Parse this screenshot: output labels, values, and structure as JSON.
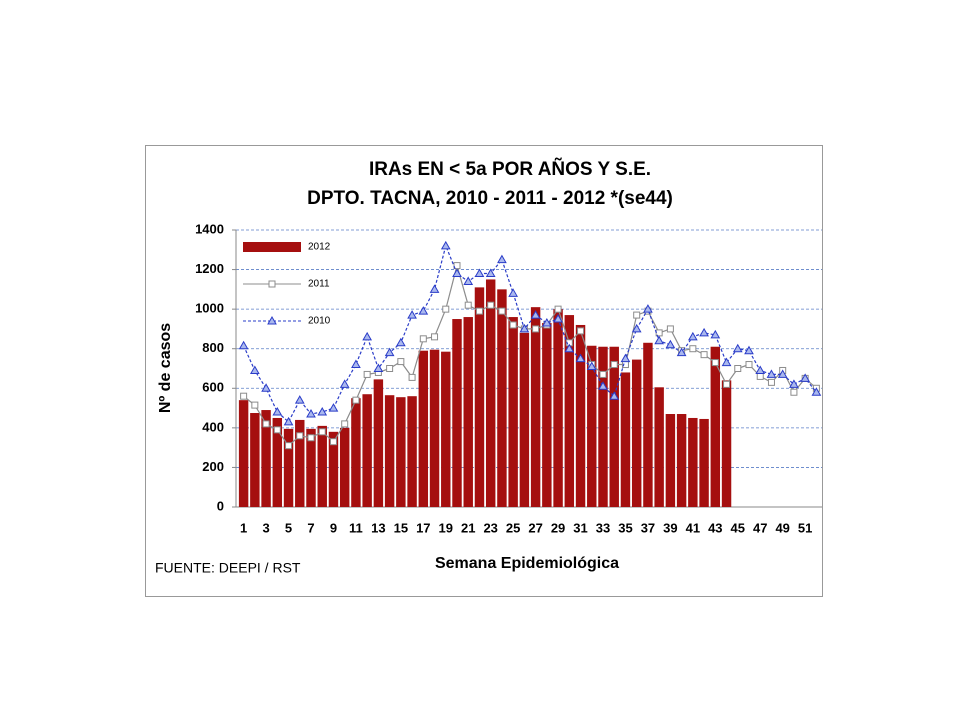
{
  "chart_data": {
    "type": "bar-line",
    "title": "IRAs  EN < 5a POR AÑOS Y S.E.",
    "subtitle": "DPTO. TACNA, 2010 - 2011 -  2012 *(se44)",
    "y_label": "Nº de casos",
    "x_label": "Semana Epidemiológica",
    "source": "FUENTE: DEEPI / RST",
    "categories": [
      "1",
      null,
      "3",
      null,
      "5",
      null,
      "7",
      null,
      "9",
      null,
      "11",
      null,
      "13",
      null,
      "15",
      null,
      "17",
      null,
      "19",
      null,
      "21",
      null,
      "23",
      null,
      "25",
      null,
      "27",
      null,
      "29",
      null,
      "31",
      null,
      "33",
      null,
      "35",
      null,
      "37",
      null,
      "39",
      null,
      "41",
      null,
      "43",
      null,
      "45",
      null,
      "47",
      null,
      "49",
      null,
      "51",
      null
    ],
    "ylim": [
      0,
      1400
    ],
    "yticks": [
      0,
      200,
      400,
      600,
      800,
      1000,
      1200,
      1400
    ],
    "grid": true,
    "legend": "upper left",
    "series": [
      {
        "name": "2012",
        "kind": "bar",
        "color": "#a50f0f",
        "values": [
          540,
          475,
          490,
          450,
          395,
          440,
          395,
          410,
          380,
          400,
          550,
          570,
          645,
          565,
          555,
          560,
          790,
          795,
          785,
          950,
          960,
          1110,
          1150,
          1100,
          960,
          880,
          1010,
          930,
          1000,
          970,
          920,
          815,
          810,
          810,
          680,
          745,
          830,
          605,
          470,
          470,
          450,
          445,
          810,
          640,
          null,
          null,
          null,
          null,
          null,
          null,
          null,
          null
        ]
      },
      {
        "name": "2011",
        "kind": "line",
        "color": "#8c8c8c",
        "marker": "square",
        "values": [
          560,
          515,
          420,
          390,
          310,
          360,
          350,
          380,
          330,
          420,
          540,
          670,
          680,
          700,
          735,
          655,
          850,
          860,
          1000,
          1220,
          1020,
          990,
          1020,
          990,
          920,
          900,
          900,
          920,
          1000,
          830,
          890,
          720,
          670,
          720,
          720,
          970,
          990,
          880,
          900,
          790,
          800,
          770,
          730,
          620,
          700,
          720,
          660,
          630,
          690,
          580,
          650,
          600
        ]
      },
      {
        "name": "2010",
        "kind": "line",
        "color": "#2a3cc8",
        "marker": "triangle",
        "dashed": true,
        "values": [
          815,
          690,
          600,
          480,
          430,
          540,
          470,
          480,
          500,
          620,
          720,
          860,
          700,
          780,
          830,
          970,
          990,
          1100,
          1320,
          1180,
          1140,
          1180,
          1180,
          1250,
          1080,
          900,
          970,
          930,
          950,
          800,
          750,
          710,
          610,
          560,
          750,
          900,
          1000,
          840,
          820,
          780,
          860,
          880,
          870,
          730,
          800,
          790,
          690,
          670,
          670,
          620,
          650,
          580
        ]
      }
    ]
  }
}
